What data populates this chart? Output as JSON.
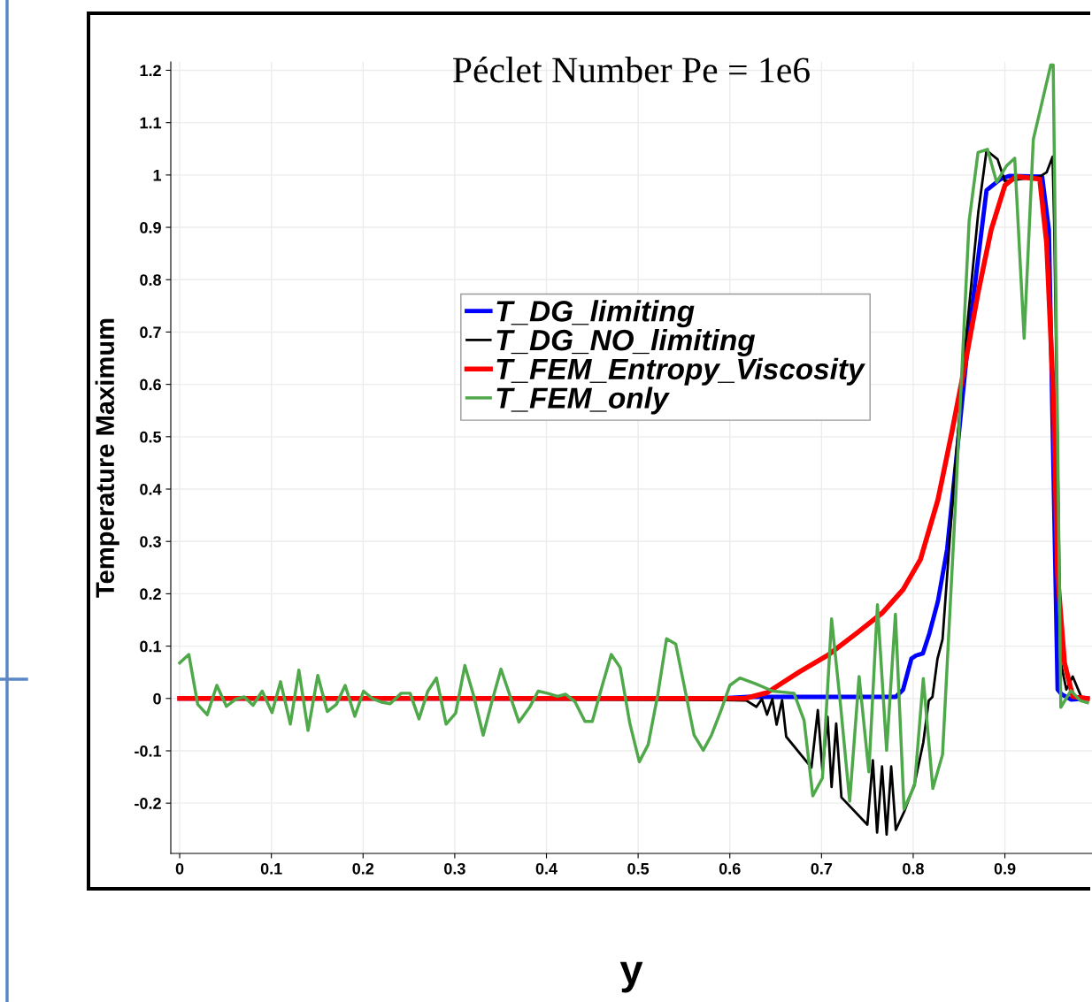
{
  "chart_data": {
    "type": "line",
    "title": "Péclet Number Pe = 1e6",
    "xlabel": "y",
    "ylabel": "Temperature Maximum",
    "xlim": [
      -0.0097,
      0.995
    ],
    "ylim": [
      -0.296,
      1.216
    ],
    "xticks": [
      0,
      0.1,
      0.2,
      0.3,
      0.4,
      0.5,
      0.6,
      0.7,
      0.8,
      0.9
    ],
    "yticks": [
      -0.2,
      -0.1,
      0,
      0.1,
      0.2,
      0.3,
      0.4,
      0.5,
      0.6,
      0.7,
      0.8,
      0.9,
      1,
      1.1,
      1.2
    ],
    "grid": true,
    "legend": "center",
    "marker": "none",
    "line_style": "solid",
    "series": [
      {
        "name": "T_DG_limiting",
        "color": "#0000ff",
        "x": [
          0,
          0.59,
          0.62,
          0.7,
          0.781,
          0.789,
          0.798,
          0.803,
          0.8105,
          0.8176,
          0.827,
          0.837,
          0.8465,
          0.861,
          0.88,
          0.895,
          0.9045,
          0.9406,
          0.948,
          0.9575,
          0.962,
          0.972,
          0.99
        ],
        "values": [
          0,
          0,
          0.003,
          0.003,
          0.003,
          0.017,
          0.076,
          0.082,
          0.086,
          0.124,
          0.186,
          0.285,
          0.448,
          0.701,
          0.971,
          0.992,
          0.998,
          0.997,
          0.895,
          0.017,
          0.008,
          -0.002,
          0
        ]
      },
      {
        "name": "T_DG_NO_limiting",
        "color": "#000000",
        "x": [
          0,
          0.595,
          0.618,
          0.629,
          0.635,
          0.6406,
          0.6464,
          0.651,
          0.657,
          0.6615,
          0.689,
          0.696,
          0.701,
          0.7066,
          0.711,
          0.716,
          0.7217,
          0.75,
          0.756,
          0.7606,
          0.766,
          0.771,
          0.776,
          0.781,
          0.79,
          0.8015,
          0.811,
          0.817,
          0.821,
          0.8265,
          0.832,
          0.844,
          0.856,
          0.871,
          0.88,
          0.892,
          0.9,
          0.938,
          0.9455,
          0.952,
          0.9537,
          0.961,
          0.967,
          0.974,
          0.984,
          0.99
        ],
        "values": [
          0,
          -0.003,
          -0.004,
          -0.016,
          -0.001,
          -0.031,
          -0.001,
          -0.05,
          -0.003,
          -0.073,
          -0.132,
          -0.022,
          -0.138,
          -0.035,
          -0.169,
          -0.048,
          -0.189,
          -0.241,
          -0.118,
          -0.256,
          -0.13,
          -0.26,
          -0.13,
          -0.251,
          -0.217,
          -0.163,
          -0.084,
          -0.004,
          0.003,
          0.076,
          0.113,
          0.405,
          0.659,
          0.929,
          1.047,
          1.03,
          0.988,
          0.997,
          1.005,
          1.035,
          0.912,
          0.068,
          0.017,
          0.042,
          0,
          0
        ]
      },
      {
        "name": "T_FEM_Entropy_Viscosity",
        "color": "#ff0000",
        "x": [
          0,
          0.6165,
          0.6406,
          0.676,
          0.708,
          0.74,
          0.766,
          0.789,
          0.808,
          0.827,
          0.842,
          0.856,
          0.871,
          0.885,
          0.9,
          0.912,
          0.938,
          0.9455,
          0.953,
          0.9575,
          0.965,
          0.974,
          0.99
        ],
        "values": [
          0,
          0,
          0.011,
          0.051,
          0.084,
          0.127,
          0.163,
          0.208,
          0.266,
          0.38,
          0.507,
          0.633,
          0.777,
          0.895,
          0.98,
          0.997,
          0.992,
          0.87,
          0.574,
          0.236,
          0.068,
          0.004,
          0
        ]
      },
      {
        "name": "T_FEM_only",
        "color": "#4fa84a",
        "x": [
          0,
          0.01,
          0.0196,
          0.03,
          0.0405,
          0.051,
          0.0615,
          0.0705,
          0.08,
          0.09,
          0.1007,
          0.11,
          0.1207,
          0.13,
          0.14,
          0.1506,
          0.161,
          0.171,
          0.1805,
          0.191,
          0.2005,
          0.21,
          0.22,
          0.2295,
          0.2416,
          0.2513,
          0.261,
          0.2706,
          0.28,
          0.2906,
          0.301,
          0.311,
          0.3205,
          0.331,
          0.3405,
          0.3504,
          0.3607,
          0.37,
          0.3816,
          0.391,
          0.401,
          0.412,
          0.421,
          0.431,
          0.442,
          0.45,
          0.4604,
          0.4707,
          0.4804,
          0.491,
          0.5013,
          0.511,
          0.5215,
          0.531,
          0.541,
          0.5505,
          0.561,
          0.571,
          0.58,
          0.591,
          0.6,
          0.611,
          0.628,
          0.647,
          0.67,
          0.681,
          0.6905,
          0.701,
          0.711,
          0.721,
          0.7307,
          0.741,
          0.7516,
          0.761,
          0.771,
          0.7806,
          0.79,
          0.8015,
          0.811,
          0.8214,
          0.832,
          0.8446,
          0.861,
          0.8707,
          0.881,
          0.891,
          0.902,
          0.9107,
          0.921,
          0.931,
          0.95,
          0.9527,
          0.961,
          0.972,
          0.982,
          0.99
        ],
        "values": [
          0.068,
          0.084,
          -0.011,
          -0.031,
          0.025,
          -0.015,
          -0.001,
          0.003,
          -0.013,
          0.014,
          -0.027,
          0.032,
          -0.049,
          0.054,
          -0.061,
          0.044,
          -0.025,
          -0.011,
          0.025,
          -0.034,
          0.014,
          0,
          -0.007,
          -0.01,
          0.01,
          0.01,
          -0.039,
          0.014,
          0.039,
          -0.049,
          -0.028,
          0.063,
          0.006,
          -0.07,
          -0.006,
          0.056,
          0.003,
          -0.045,
          -0.017,
          0.014,
          0.01,
          0.004,
          0.008,
          -0.006,
          -0.044,
          -0.044,
          0.022,
          0.084,
          0.059,
          -0.048,
          -0.121,
          -0.088,
          0.008,
          0.114,
          0.104,
          0.022,
          -0.07,
          -0.099,
          -0.07,
          -0.02,
          0.025,
          0.039,
          0.028,
          0.014,
          0.01,
          -0.042,
          -0.186,
          -0.152,
          0.152,
          -0.017,
          -0.196,
          0.042,
          -0.14,
          0.179,
          -0.099,
          0.161,
          -0.211,
          -0.166,
          0.038,
          -0.172,
          -0.107,
          0.321,
          0.912,
          1.043,
          1.049,
          0.986,
          1.018,
          1.032,
          0.688,
          1.068,
          1.21,
          1.21,
          -0.017,
          0.015,
          -0.004,
          -0.008
        ]
      }
    ]
  }
}
